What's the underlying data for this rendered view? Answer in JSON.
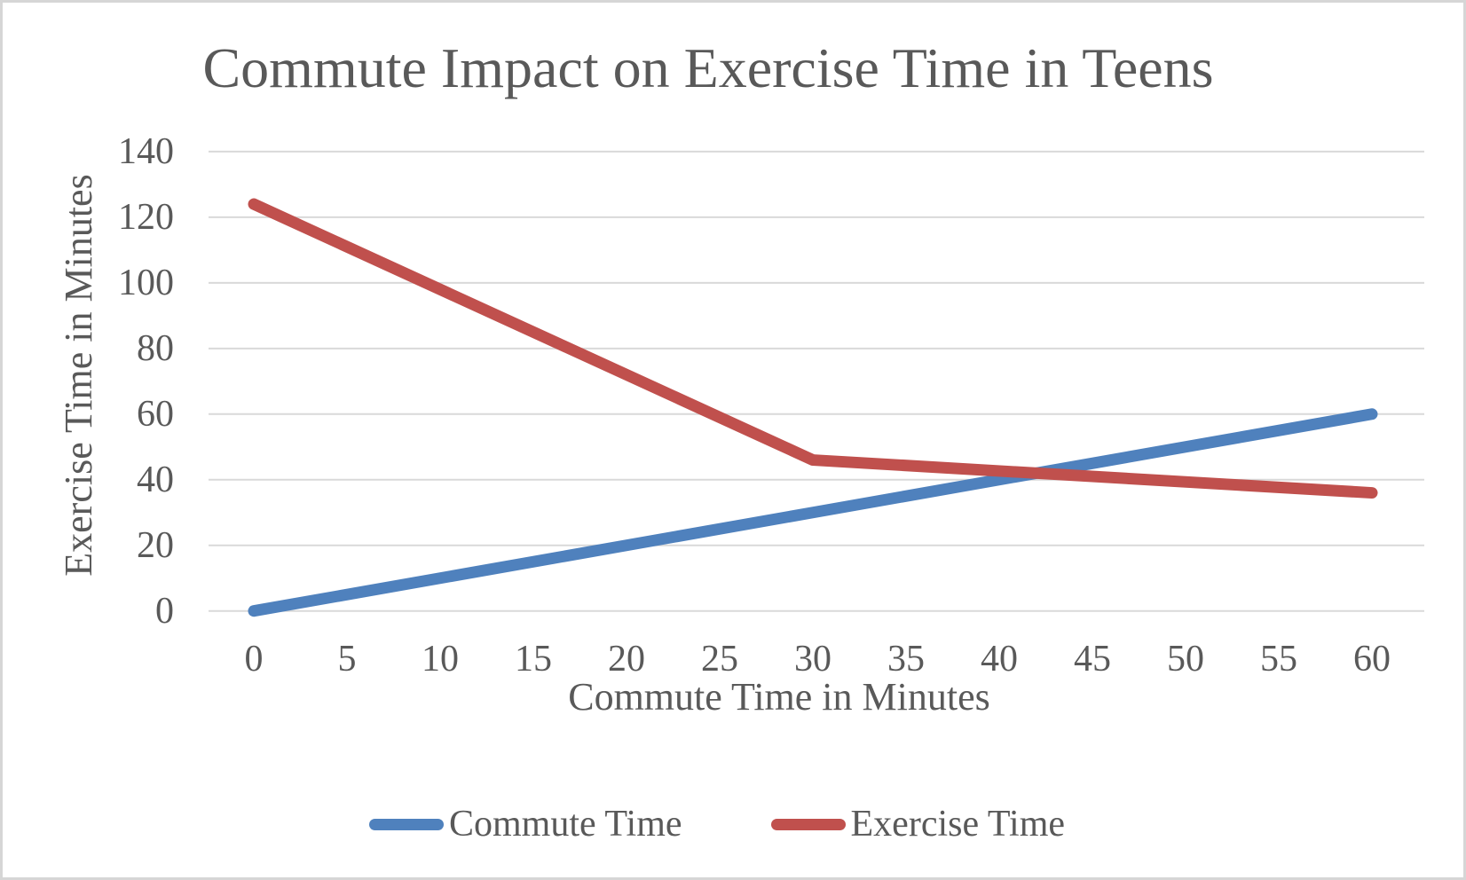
{
  "frame": {
    "background": "#ffffff",
    "border_color": "#d6d6d6"
  },
  "chart_data": {
    "type": "line",
    "title": "Commute Impact on Exercise Time in Teens",
    "xlabel": "Commute Time in Minutes",
    "ylabel": "Exercise Time in Minutes",
    "x": [
      0,
      30,
      60
    ],
    "series": [
      {
        "name": "Commute Time",
        "color": "#4f81bd",
        "values": [
          0,
          30,
          60
        ]
      },
      {
        "name": "Exercise Time",
        "color": "#c0504d",
        "values": [
          124,
          46,
          36
        ]
      }
    ],
    "x_ticks": [
      0,
      5,
      10,
      15,
      20,
      25,
      30,
      35,
      40,
      45,
      50,
      55,
      60
    ],
    "y_ticks": [
      0,
      20,
      40,
      60,
      80,
      100,
      120,
      140
    ],
    "xlim": [
      0,
      60
    ],
    "ylim": [
      0,
      140
    ],
    "grid": "horizontal-only",
    "gridline_color": "#d9d9d9",
    "text_color": "#595959",
    "line_width": 13,
    "legend_position": "bottom"
  }
}
